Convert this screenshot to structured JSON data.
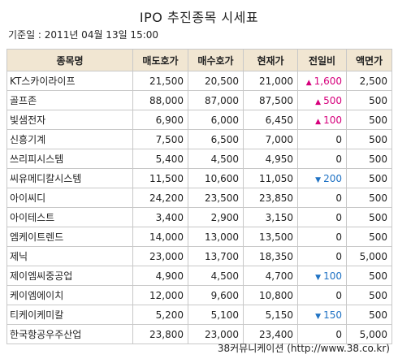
{
  "title": "IPO 추진종목 시세표",
  "date_line": "기준일 : 2011년 04월 13일 15:00",
  "colors": {
    "header_bg": "#f1e6d2",
    "up": "#d6007c",
    "down": "#1f72c4",
    "border": "#c8c8c8"
  },
  "icons": {
    "up": "up-triangle-icon",
    "down": "down-triangle-icon"
  },
  "columns": [
    "종목명",
    "매도호가",
    "매수호가",
    "현재가",
    "전일비",
    "액면가"
  ],
  "rows": [
    {
      "name": "KT스카이라이프",
      "ask": "21,500",
      "bid": "20,500",
      "price": "21,000",
      "change": "1,600",
      "dir": "up",
      "par": "2,500"
    },
    {
      "name": "골프존",
      "ask": "88,000",
      "bid": "87,000",
      "price": "87,500",
      "change": "500",
      "dir": "up",
      "par": "500"
    },
    {
      "name": "빛샘전자",
      "ask": "6,900",
      "bid": "6,000",
      "price": "6,450",
      "change": "100",
      "dir": "up",
      "par": "500"
    },
    {
      "name": "신흥기계",
      "ask": "7,500",
      "bid": "6,500",
      "price": "7,000",
      "change": "0",
      "dir": "none",
      "par": "500"
    },
    {
      "name": "쓰리피시스템",
      "ask": "5,400",
      "bid": "4,500",
      "price": "4,950",
      "change": "0",
      "dir": "none",
      "par": "500"
    },
    {
      "name": "씨유메디칼시스템",
      "ask": "11,500",
      "bid": "10,600",
      "price": "11,050",
      "change": "200",
      "dir": "down",
      "par": "500"
    },
    {
      "name": "아이씨디",
      "ask": "24,200",
      "bid": "23,500",
      "price": "23,850",
      "change": "0",
      "dir": "none",
      "par": "500"
    },
    {
      "name": "아이테스트",
      "ask": "3,400",
      "bid": "2,900",
      "price": "3,150",
      "change": "0",
      "dir": "none",
      "par": "500"
    },
    {
      "name": "엠케이트렌드",
      "ask": "14,000",
      "bid": "13,000",
      "price": "13,500",
      "change": "0",
      "dir": "none",
      "par": "500"
    },
    {
      "name": "제닉",
      "ask": "23,000",
      "bid": "13,700",
      "price": "18,350",
      "change": "0",
      "dir": "none",
      "par": "5,000"
    },
    {
      "name": "제이엠씨중공업",
      "ask": "4,900",
      "bid": "4,500",
      "price": "4,700",
      "change": "100",
      "dir": "down",
      "par": "500"
    },
    {
      "name": "케이엠에이치",
      "ask": "12,000",
      "bid": "9,600",
      "price": "10,800",
      "change": "0",
      "dir": "none",
      "par": "500"
    },
    {
      "name": "티케이케미칼",
      "ask": "5,200",
      "bid": "5,100",
      "price": "5,150",
      "change": "150",
      "dir": "down",
      "par": "500"
    },
    {
      "name": "한국항공우주산업",
      "ask": "23,800",
      "bid": "23,000",
      "price": "23,400",
      "change": "0",
      "dir": "none",
      "par": "5,000"
    }
  ],
  "footer": "38커뮤니케이션 (http://www.38.co.kr)"
}
